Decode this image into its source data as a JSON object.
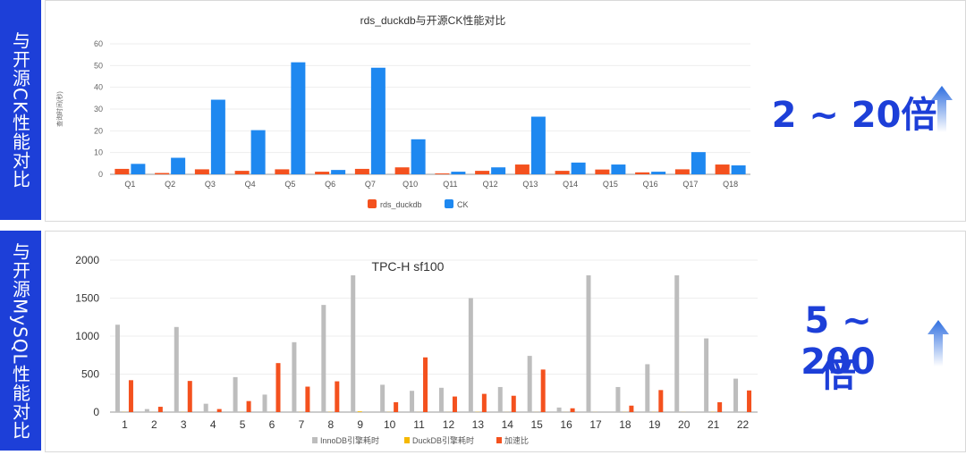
{
  "panel1": {
    "side_label": "与开源CK性能对比",
    "ratio_label": "2 ~ 20倍"
  },
  "panel2": {
    "side_label": "与开源MySQL性能对比",
    "ratio_label_line1": "5 ~ 200",
    "ratio_label_line2": "倍"
  },
  "colors": {
    "sidebar": "#1d3fd8",
    "ratio_text": "#1d3fd8",
    "rds_duckdb": "#f4511e",
    "ck": "#1e88f0",
    "innodb": "#bdbdbd",
    "duckdb": "#f5b800",
    "speedup": "#f4511e"
  },
  "chart_data": [
    {
      "type": "bar",
      "title": "rds_duckdb与开源CK性能对比",
      "ylabel": "查询时间(秒)",
      "xlabel": "",
      "ylim": [
        0,
        60
      ],
      "yticks": [
        0,
        10,
        20,
        30,
        40,
        50,
        60
      ],
      "grid": true,
      "legend": "bottom",
      "categories": [
        "Q1",
        "Q2",
        "Q3",
        "Q4",
        "Q5",
        "Q6",
        "Q7",
        "Q10",
        "Q11",
        "Q12",
        "Q13",
        "Q14",
        "Q15",
        "Q16",
        "Q17",
        "Q18"
      ],
      "series": [
        {
          "name": "rds_duckdb",
          "values": [
            2.5,
            0.6,
            2.3,
            1.6,
            2.3,
            1.2,
            2.5,
            3.2,
            0.4,
            1.6,
            4.5,
            1.6,
            2.2,
            0.9,
            2.3,
            4.5
          ]
        },
        {
          "name": "CK",
          "values": [
            4.8,
            7.6,
            34.3,
            20.3,
            51.5,
            2.0,
            49.0,
            16.1,
            1.2,
            3.2,
            26.5,
            5.4,
            4.5,
            1.2,
            10.2,
            4.1
          ]
        }
      ]
    },
    {
      "type": "bar",
      "title": "TPC-H sf100",
      "xlabel": "",
      "ylabel": "",
      "ylim": [
        0,
        2000
      ],
      "yticks": [
        0,
        500,
        1000,
        1500,
        2000
      ],
      "grid": true,
      "legend": "bottom",
      "categories": [
        "1",
        "2",
        "3",
        "4",
        "5",
        "6",
        "7",
        "8",
        "9",
        "10",
        "11",
        "12",
        "13",
        "14",
        "15",
        "16",
        "17",
        "18",
        "19",
        "20",
        "21",
        "22"
      ],
      "series": [
        {
          "name": "InnoDB引擎耗时",
          "values": [
            1150,
            40,
            1120,
            110,
            460,
            230,
            920,
            1410,
            1800,
            360,
            280,
            320,
            1500,
            330,
            740,
            60,
            1800,
            330,
            630,
            1800,
            970,
            440
          ]
        },
        {
          "name": "DuckDB引擎耗时",
          "values": [
            2,
            1,
            2,
            1,
            2,
            1,
            2,
            3,
            10,
            2,
            1,
            1,
            3,
            1,
            1,
            1,
            1,
            2,
            2,
            1,
            3,
            1
          ]
        },
        {
          "name": "加速比",
          "values": [
            420,
            70,
            410,
            40,
            145,
            645,
            335,
            405,
            0,
            130,
            720,
            205,
            240,
            215,
            560,
            50,
            0,
            85,
            290,
            0,
            130,
            285
          ]
        }
      ]
    }
  ]
}
